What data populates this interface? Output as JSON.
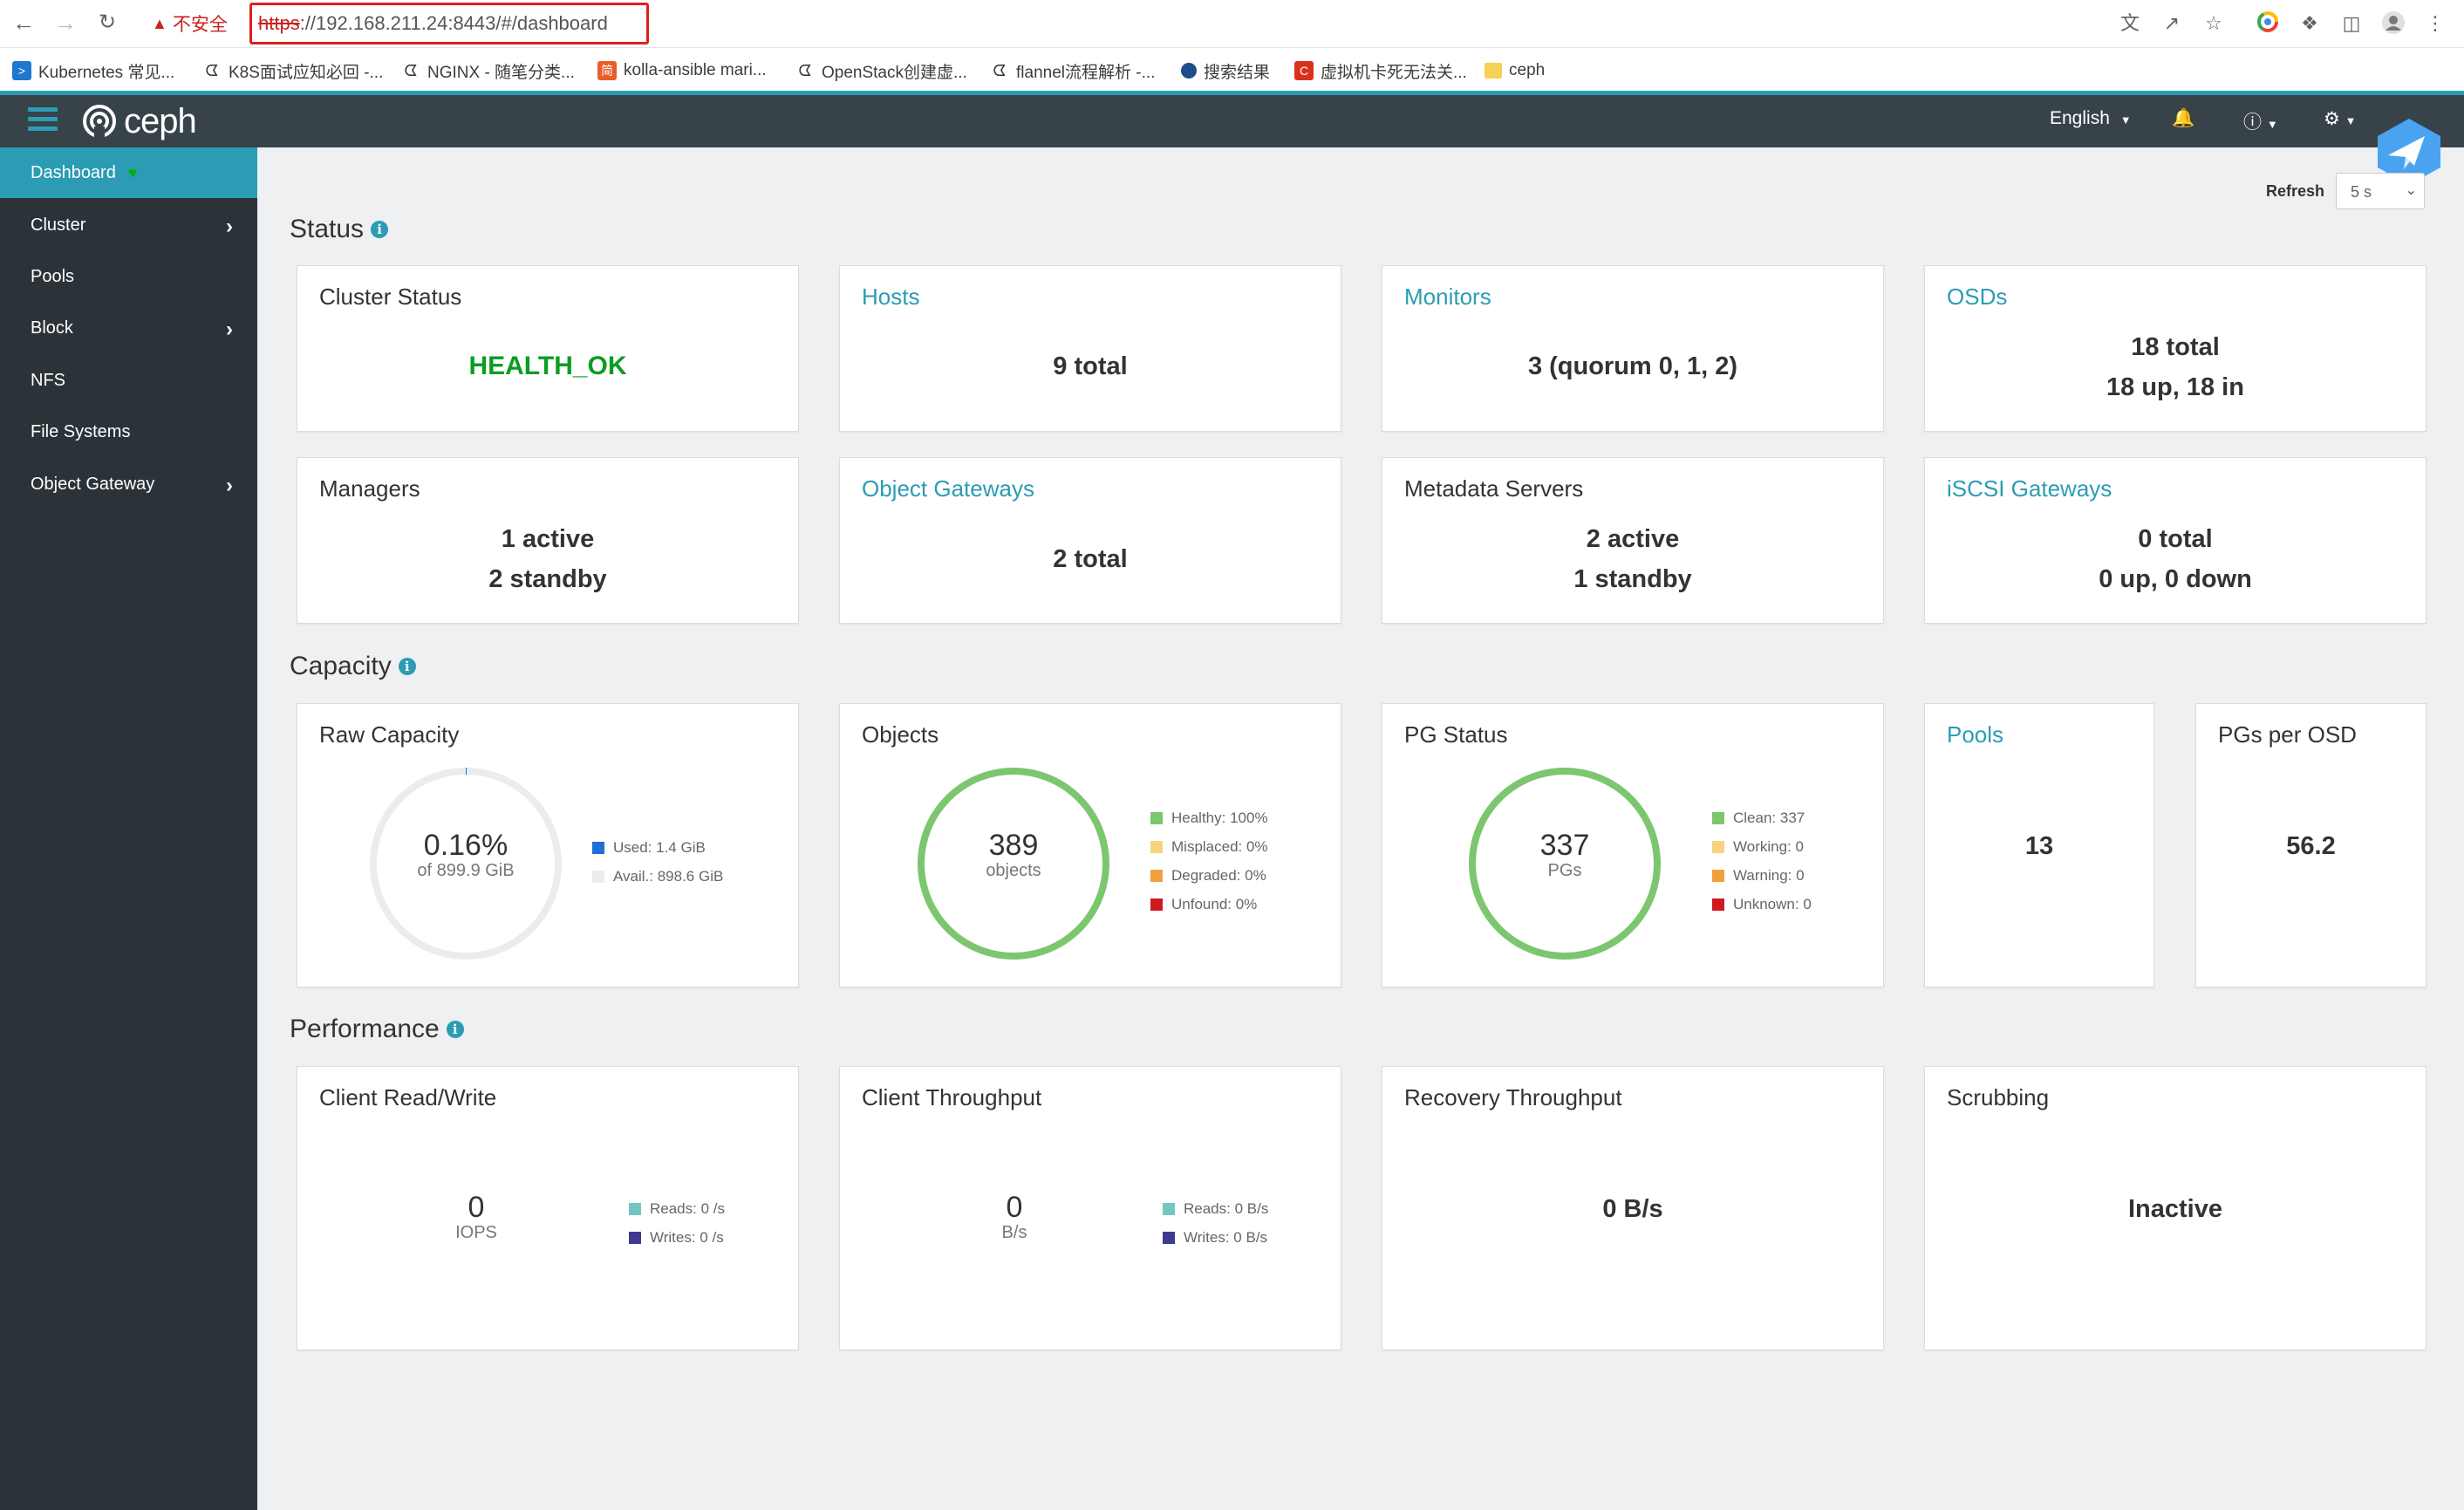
{
  "browser": {
    "insecure_label": "不安全",
    "url_scheme": "https",
    "url_rest": "://192.168.211.24:8443/#/dashboard",
    "bookmarks": [
      {
        "label": "Kubernetes 常见..."
      },
      {
        "label": "K8S面试应知必回 -..."
      },
      {
        "label": "NGINX - 随笔分类..."
      },
      {
        "label": "kolla-ansible mari..."
      },
      {
        "label": "OpenStack创建虚..."
      },
      {
        "label": "flannel流程解析 -..."
      },
      {
        "label": "搜索结果"
      },
      {
        "label": "虚拟机卡死无法关..."
      },
      {
        "label": "ceph"
      }
    ]
  },
  "navbar": {
    "logo": "ceph",
    "language": "English"
  },
  "sidebar": {
    "items": [
      {
        "label": "Dashboard"
      },
      {
        "label": "Cluster"
      },
      {
        "label": "Pools"
      },
      {
        "label": "Block"
      },
      {
        "label": "NFS"
      },
      {
        "label": "File Systems"
      },
      {
        "label": "Object Gateway"
      }
    ]
  },
  "refresh": {
    "label": "Refresh",
    "value": "5 s"
  },
  "sections": {
    "status": "Status",
    "capacity": "Capacity",
    "performance": "Performance"
  },
  "status_cards": {
    "cluster_status": {
      "title": "Cluster Status",
      "value": "HEALTH_OK"
    },
    "hosts": {
      "title": "Hosts",
      "value": "9 total"
    },
    "monitors": {
      "title": "Monitors",
      "value": "3 (quorum 0, 1, 2)"
    },
    "osds": {
      "title": "OSDs",
      "line1": "18 total",
      "line2": "18 up, 18 in"
    },
    "managers": {
      "title": "Managers",
      "line1": "1 active",
      "line2": "2 standby"
    },
    "object_gateways": {
      "title": "Object Gateways",
      "value": "2 total"
    },
    "metadata_servers": {
      "title": "Metadata Servers",
      "line1": "2 active",
      "line2": "1 standby"
    },
    "iscsi_gateways": {
      "title": "iSCSI Gateways",
      "line1": "0 total",
      "line2": "0 up, 0 down"
    }
  },
  "capacity_cards": {
    "raw_capacity": {
      "title": "Raw Capacity",
      "value": "0.16%",
      "sub": "of 899.9 GiB",
      "used_fraction": 0.0016,
      "legend": [
        {
          "label": "Used: 1.4 GiB",
          "color": "#1f6fd6"
        },
        {
          "label": "Avail.: 898.6 GiB",
          "color": "#ececec"
        }
      ]
    },
    "objects": {
      "title": "Objects",
      "value": "389",
      "sub": "objects",
      "legend": [
        {
          "label": "Healthy: 100%",
          "color": "#7cc66f"
        },
        {
          "label": "Misplaced: 0%",
          "color": "#f6d37c"
        },
        {
          "label": "Degraded: 0%",
          "color": "#f0a13c"
        },
        {
          "label": "Unfound: 0%",
          "color": "#d0191e"
        }
      ]
    },
    "pg_status": {
      "title": "PG Status",
      "value": "337",
      "sub": "PGs",
      "legend": [
        {
          "label": "Clean: 337",
          "color": "#7cc66f"
        },
        {
          "label": "Working: 0",
          "color": "#f6d37c"
        },
        {
          "label": "Warning: 0",
          "color": "#f0a13c"
        },
        {
          "label": "Unknown: 0",
          "color": "#d0191e"
        }
      ]
    },
    "pools": {
      "title": "Pools",
      "value": "13"
    },
    "pgs_per_osd": {
      "title": "PGs per OSD",
      "value": "56.2"
    }
  },
  "performance_cards": {
    "client_rw": {
      "title": "Client Read/Write",
      "value": "0",
      "sub": "IOPS",
      "legend": [
        {
          "label": "Reads: 0 /s",
          "color": "#74c7c0"
        },
        {
          "label": "Writes: 0 /s",
          "color": "#3f3a8e"
        }
      ]
    },
    "client_throughput": {
      "title": "Client Throughput",
      "value": "0",
      "sub": "B/s",
      "legend": [
        {
          "label": "Reads: 0 B/s",
          "color": "#74c7c0"
        },
        {
          "label": "Writes: 0 B/s",
          "color": "#3f3a8e"
        }
      ]
    },
    "recovery_throughput": {
      "title": "Recovery Throughput",
      "value": "0 B/s"
    },
    "scrubbing": {
      "title": "Scrubbing",
      "value": "Inactive"
    }
  },
  "colors": {
    "accent": "#2b9cb3",
    "navbar": "#374249",
    "sidebar": "#2b3339",
    "health_ok": "#0b9d23",
    "donut_green": "#7cc66f"
  }
}
